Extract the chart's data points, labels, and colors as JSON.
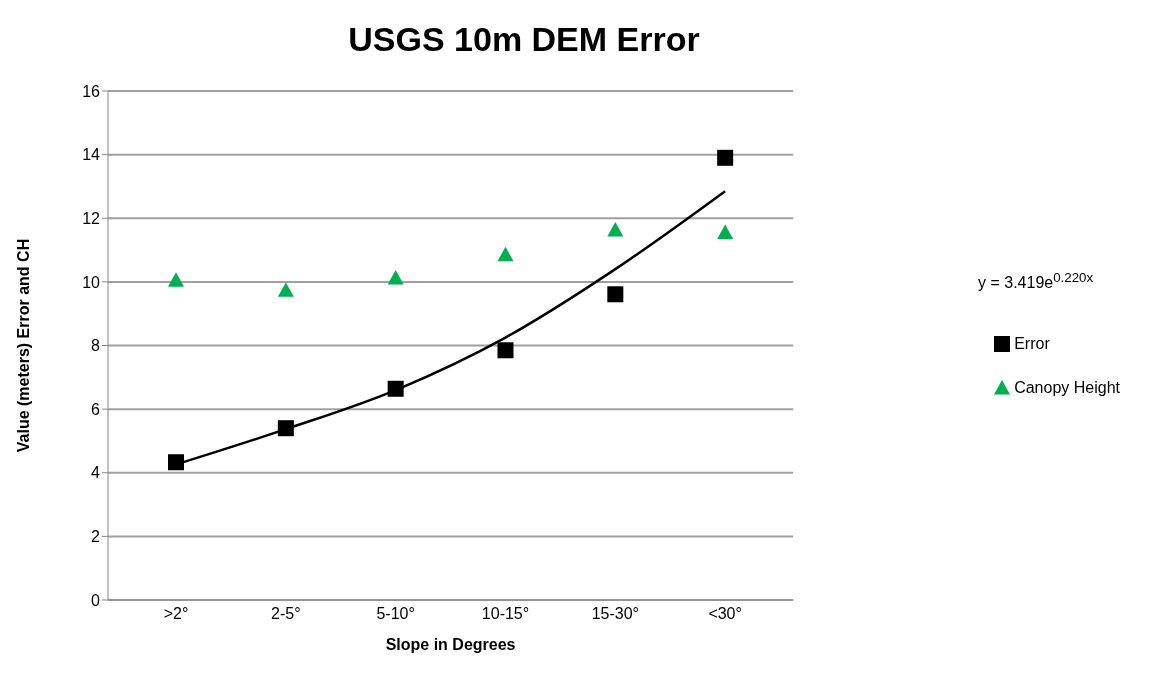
{
  "chart_data": {
    "type": "scatter",
    "title": "USGS 10m DEM Error",
    "xlabel": "Slope in Degrees",
    "ylabel": "Value (meters) Error and CH",
    "categories": [
      ">2°",
      "2-5°",
      "5-10°",
      "10-15°",
      "15-30°",
      "<30°"
    ],
    "series": [
      {
        "name": "Error",
        "marker": "square",
        "color": "#000000",
        "values": [
          4.33,
          5.4,
          6.64,
          7.85,
          9.61,
          13.9
        ]
      },
      {
        "name": "Canopy Height",
        "marker": "triangle",
        "color": "#00b050",
        "values": [
          10.05,
          9.73,
          10.12,
          10.85,
          11.63,
          11.55
        ]
      },
      {
        "type": "line",
        "color": "#000000",
        "values": [
          4.26,
          5.37,
          6.6,
          8.25,
          10.4,
          12.85
        ]
      }
    ],
    "annotations": [
      "y = 3.419e$^{0.220x}$"
    ],
    "ylim": [
      0,
      16
    ],
    "yticks": [
      0,
      2,
      4,
      6,
      8,
      10,
      12,
      14,
      16
    ],
    "grid": "y",
    "legend": "right"
  }
}
